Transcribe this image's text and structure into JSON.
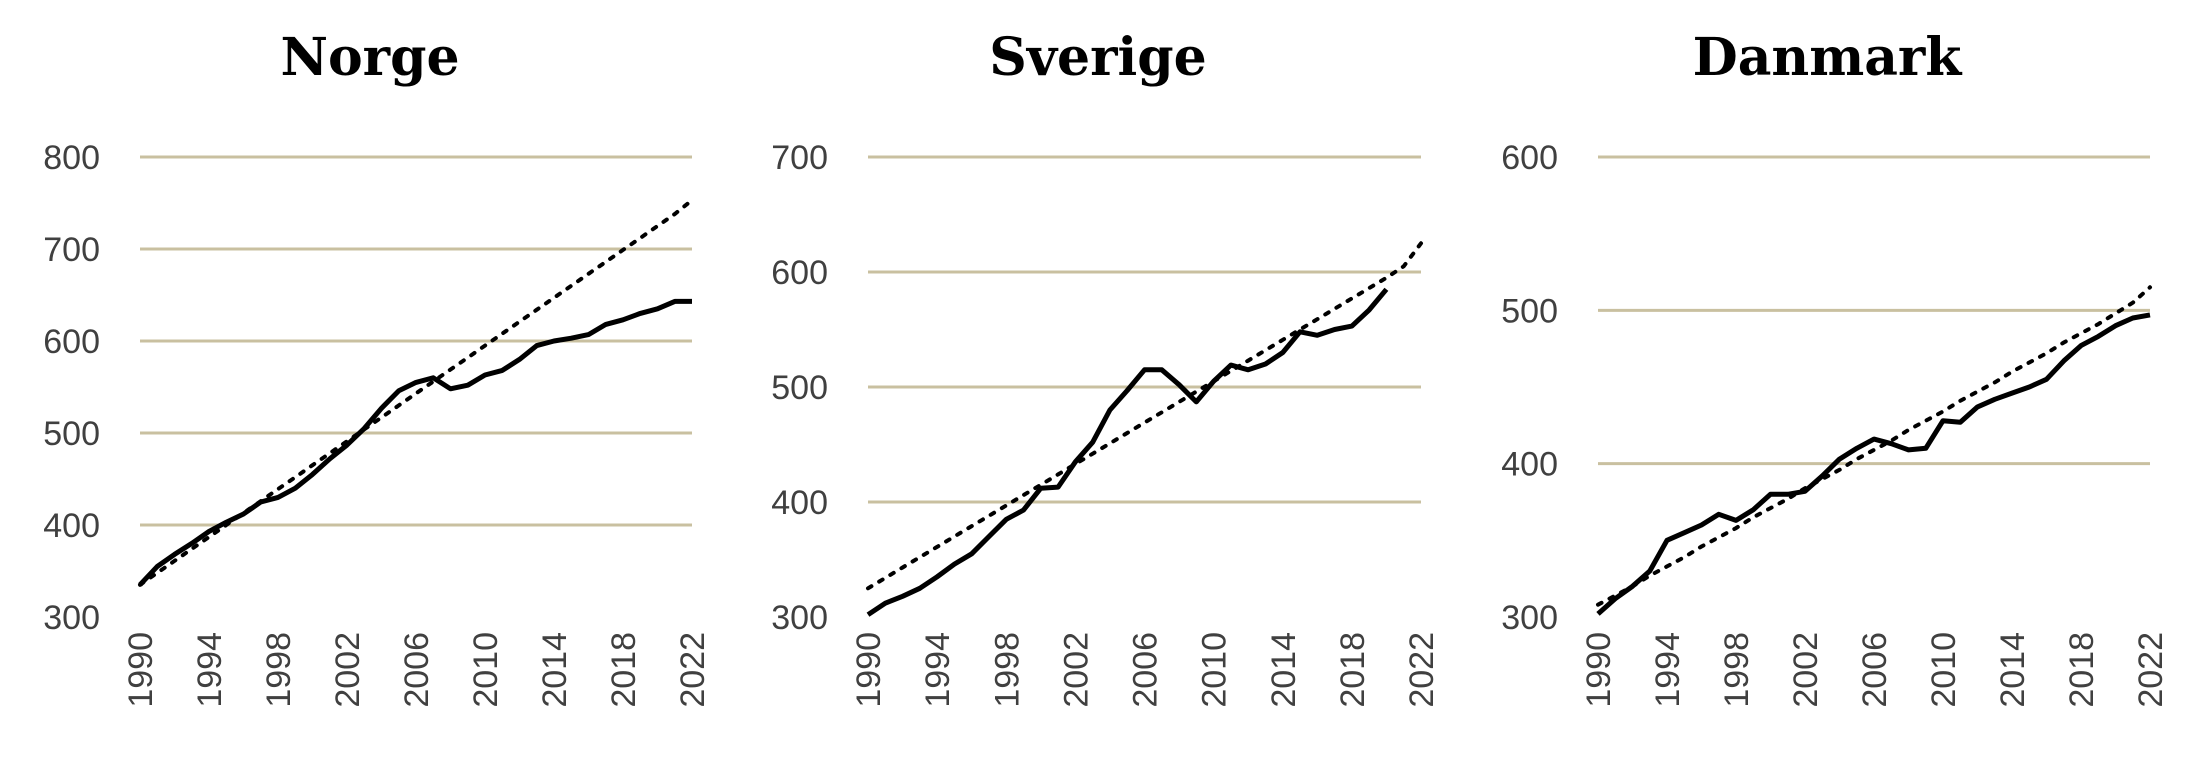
{
  "chart_data": [
    {
      "type": "line",
      "title": "Norge",
      "ylim": [
        300,
        800
      ],
      "yticks": [
        "300",
        "400",
        "500",
        "600",
        "700",
        "800"
      ],
      "xticks": [
        "1990",
        "1994",
        "1998",
        "2002",
        "2006",
        "2010",
        "2014",
        "2018",
        "2022"
      ],
      "grid": true,
      "x": [
        1990,
        1991,
        1992,
        1993,
        1994,
        1995,
        1996,
        1997,
        1998,
        1999,
        2000,
        2001,
        2002,
        2003,
        2004,
        2005,
        2006,
        2007,
        2008,
        2009,
        2010,
        2011,
        2012,
        2013,
        2014,
        2015,
        2016,
        2017,
        2018,
        2019,
        2020,
        2021,
        2022
      ],
      "series": [
        {
          "values": [
            335,
            355,
            368,
            380,
            393,
            403,
            412,
            425,
            430,
            440,
            455,
            472,
            487,
            505,
            527,
            546,
            555,
            560,
            548,
            552,
            563,
            568,
            580,
            595,
            600,
            603,
            607,
            618,
            623,
            630,
            635,
            643,
            643
          ]
        },
        {
          "style": "dotted trend",
          "values": [
            335,
            348,
            361,
            374,
            387,
            400,
            413,
            426,
            439,
            452,
            465,
            478,
            491,
            504,
            517,
            530,
            543,
            556,
            569,
            582,
            595,
            608,
            621,
            634,
            647,
            660,
            673,
            686,
            699,
            712,
            725,
            738,
            753
          ]
        }
      ]
    },
    {
      "type": "line",
      "title": "Sverige",
      "ylim": [
        300,
        700
      ],
      "yticks": [
        "300",
        "400",
        "500",
        "600",
        "700"
      ],
      "xticks": [
        "1990",
        "1994",
        "1998",
        "2002",
        "2006",
        "2010",
        "2014",
        "2018",
        "2022"
      ],
      "grid": true,
      "x": [
        1990,
        1991,
        1992,
        1993,
        1994,
        1995,
        1996,
        1997,
        1998,
        1999,
        2000,
        2001,
        2002,
        2003,
        2004,
        2005,
        2006,
        2007,
        2008,
        2009,
        2010,
        2011,
        2012,
        2013,
        2014,
        2015,
        2016,
        2017,
        2018,
        2019,
        2020,
        2021,
        2022
      ],
      "series": [
        {
          "values": [
            302,
            312,
            318,
            325,
            335,
            346,
            355,
            370,
            385,
            393,
            412,
            413,
            435,
            452,
            480,
            497,
            515,
            515,
            502,
            487,
            505,
            519,
            515,
            520,
            530,
            548,
            545,
            550,
            553,
            567,
            585,
            null,
            null
          ]
        },
        {
          "style": "dotted trend",
          "values": [
            325,
            334,
            343,
            352,
            361,
            370,
            379,
            388,
            397,
            406,
            415,
            424,
            433,
            442,
            451,
            460,
            469,
            478,
            487,
            496,
            505,
            514,
            523,
            532,
            541,
            550,
            559,
            568,
            577,
            586,
            595,
            605,
            625
          ]
        }
      ]
    },
    {
      "type": "line",
      "title": "Danmark",
      "ylim": [
        300,
        600
      ],
      "yticks": [
        "300",
        "400",
        "500",
        "600"
      ],
      "xticks": [
        "1990",
        "1994",
        "1998",
        "2002",
        "2006",
        "2010",
        "2014",
        "2018",
        "2022"
      ],
      "grid": true,
      "x": [
        1990,
        1991,
        1992,
        1993,
        1994,
        1995,
        1996,
        1997,
        1998,
        1999,
        2000,
        2001,
        2002,
        2003,
        2004,
        2005,
        2006,
        2007,
        2008,
        2009,
        2010,
        2011,
        2012,
        2013,
        2014,
        2015,
        2016,
        2017,
        2018,
        2019,
        2020,
        2021,
        2022
      ],
      "series": [
        {
          "values": [
            302,
            312,
            320,
            330,
            350,
            355,
            360,
            367,
            363,
            370,
            380,
            380,
            382,
            392,
            403,
            410,
            416,
            413,
            409,
            410,
            428,
            427,
            437,
            442,
            446,
            450,
            455,
            467,
            477,
            483,
            490,
            495,
            497
          ]
        },
        {
          "style": "dotted trend",
          "values": [
            308,
            314,
            320,
            327,
            333,
            339,
            346,
            352,
            358,
            365,
            371,
            377,
            384,
            390,
            396,
            403,
            409,
            415,
            422,
            428,
            434,
            441,
            447,
            453,
            460,
            466,
            472,
            479,
            485,
            491,
            498,
            505,
            515
          ]
        }
      ]
    }
  ]
}
